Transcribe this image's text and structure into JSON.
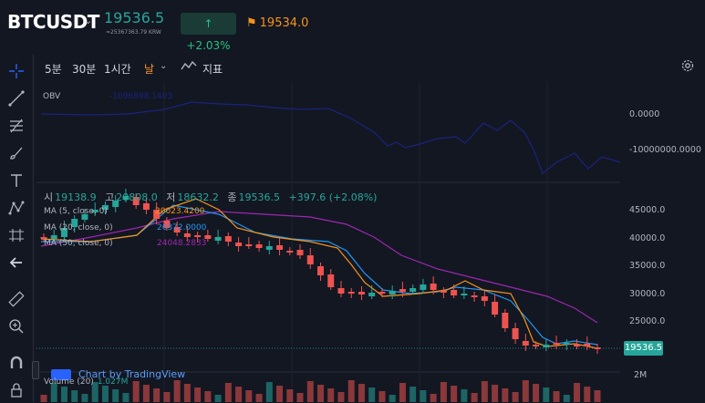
{
  "header": {
    "symbol": "BTCUSDT",
    "last_price": "19536.5",
    "last_sub": "≈25367363.79 KRW",
    "change_pct": "+2.03%",
    "flag_price": "19534.0"
  },
  "toolbar": {
    "timeframes": [
      "5분",
      "30분",
      "1시간",
      "날"
    ],
    "active_timeframe": "날",
    "indicators_label": "지표"
  },
  "obv_pane": {
    "label": "OBV",
    "series_label": "-1096898.1403",
    "axis_ticks": [
      "0.0000",
      "-10000000.0000"
    ]
  },
  "price_pane": {
    "ohlc": {
      "open_key": "시",
      "open": "19138.9",
      "high_key": "고",
      "high": "20808.0",
      "low_key": "저",
      "low": "18632.2",
      "close_key": "종",
      "close": "19536.5",
      "change": "+397.6 (+2.08%)"
    },
    "ma_legends": [
      {
        "label": "MA (5, close, 0)",
        "value": "20023.4200",
        "color": "#f7931a"
      },
      {
        "label": "MA (20, close, 0)",
        "value": "20372.0000",
        "color": "#2196f3"
      },
      {
        "label": "MA (50, close, 0)",
        "value": "24048.2833",
        "color": "#9c27b0"
      }
    ],
    "axis_ticks": [
      "45000.0",
      "40000.0",
      "35000.0",
      "30000.0",
      "25000.0"
    ],
    "price_tag": "19536.5"
  },
  "volume_pane": {
    "label": "Volume (20)",
    "value": "1.027M",
    "axis_tick": "2M"
  },
  "watermark": "Chart by TradingView",
  "colors": {
    "up": "#26a69a",
    "down": "#ef5350",
    "obv": "#1a237e",
    "accent": "#f7931a"
  }
}
